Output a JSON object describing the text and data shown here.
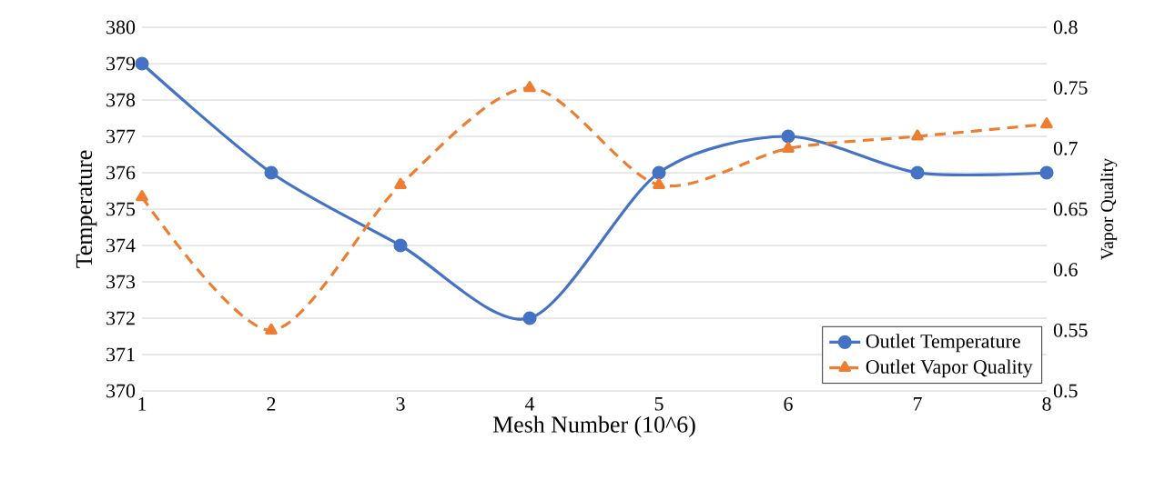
{
  "chart_data": {
    "type": "line",
    "xlabel": "Mesh Number (10^6)",
    "ylabel": "Temperature",
    "y2label": "Vapor Quality",
    "x": [
      1,
      2,
      3,
      4,
      5,
      6,
      7,
      8
    ],
    "series": [
      {
        "name": "Outlet Temperature",
        "color": "#4472c4",
        "values": [
          379,
          376,
          374,
          372,
          376,
          377,
          376,
          376
        ],
        "marker": "circle",
        "line_style": "solid"
      },
      {
        "name": "Outlet Vapor Quality",
        "color": "#ed7d31",
        "values": [
          0.66,
          0.55,
          0.67,
          0.75,
          0.67,
          0.7,
          0.71,
          0.72
        ],
        "axis": "y2",
        "marker": "triangle",
        "line_style": "dashed"
      }
    ],
    "xlim": [
      1,
      8
    ],
    "xticks": [
      1,
      2,
      3,
      4,
      5,
      6,
      7,
      8
    ],
    "ylim": [
      370,
      380
    ],
    "yticks": [
      370,
      371,
      372,
      373,
      374,
      375,
      376,
      377,
      378,
      379,
      380
    ],
    "y2lim": [
      0.5,
      0.8
    ],
    "y2ticks": [
      0.5,
      0.55,
      0.6,
      0.65,
      0.7,
      0.75,
      0.8
    ],
    "grid": "y",
    "legend": "bottom right"
  }
}
